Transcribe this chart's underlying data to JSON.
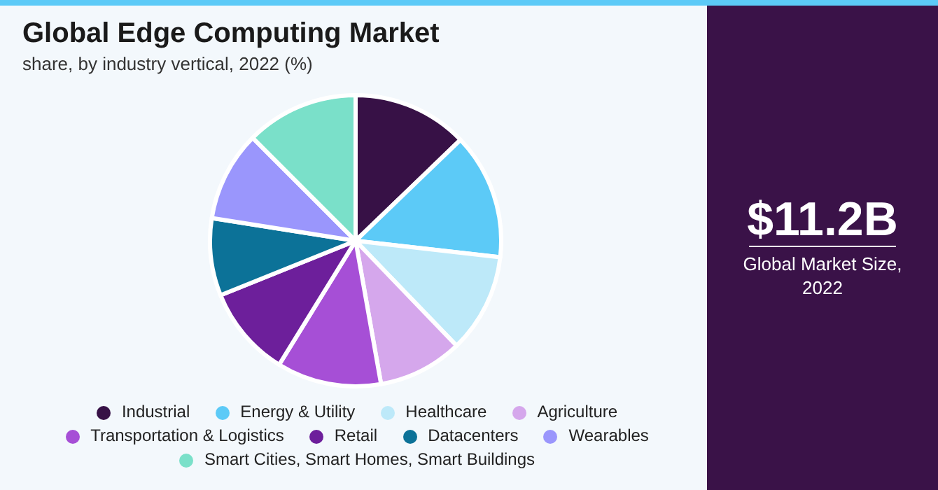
{
  "chart_data": {
    "type": "pie",
    "title": "Global Edge Computing Market",
    "subtitle": "share, by industry vertical, 2022 (%)",
    "categories": [
      "Industrial",
      "Energy & Utility",
      "Healthcare",
      "Agriculture",
      "Transportation & Logistics",
      "Retail",
      "Datacenters",
      "Wearables",
      "Smart Cities, Smart Homes, Smart Buildings"
    ],
    "values": [
      12.8,
      14.0,
      11.0,
      9.4,
      11.6,
      10.1,
      8.6,
      10.0,
      12.5
    ],
    "colors": [
      "#371146",
      "#5ccaf7",
      "#bde9f9",
      "#d5a7ec",
      "#a64fd6",
      "#6d1f9b",
      "#0c7298",
      "#9a96fc",
      "#7ae0c9"
    ],
    "legend": "bottom",
    "annotations": [
      "$11.2B",
      "Global Market Size, 2022"
    ]
  }
}
